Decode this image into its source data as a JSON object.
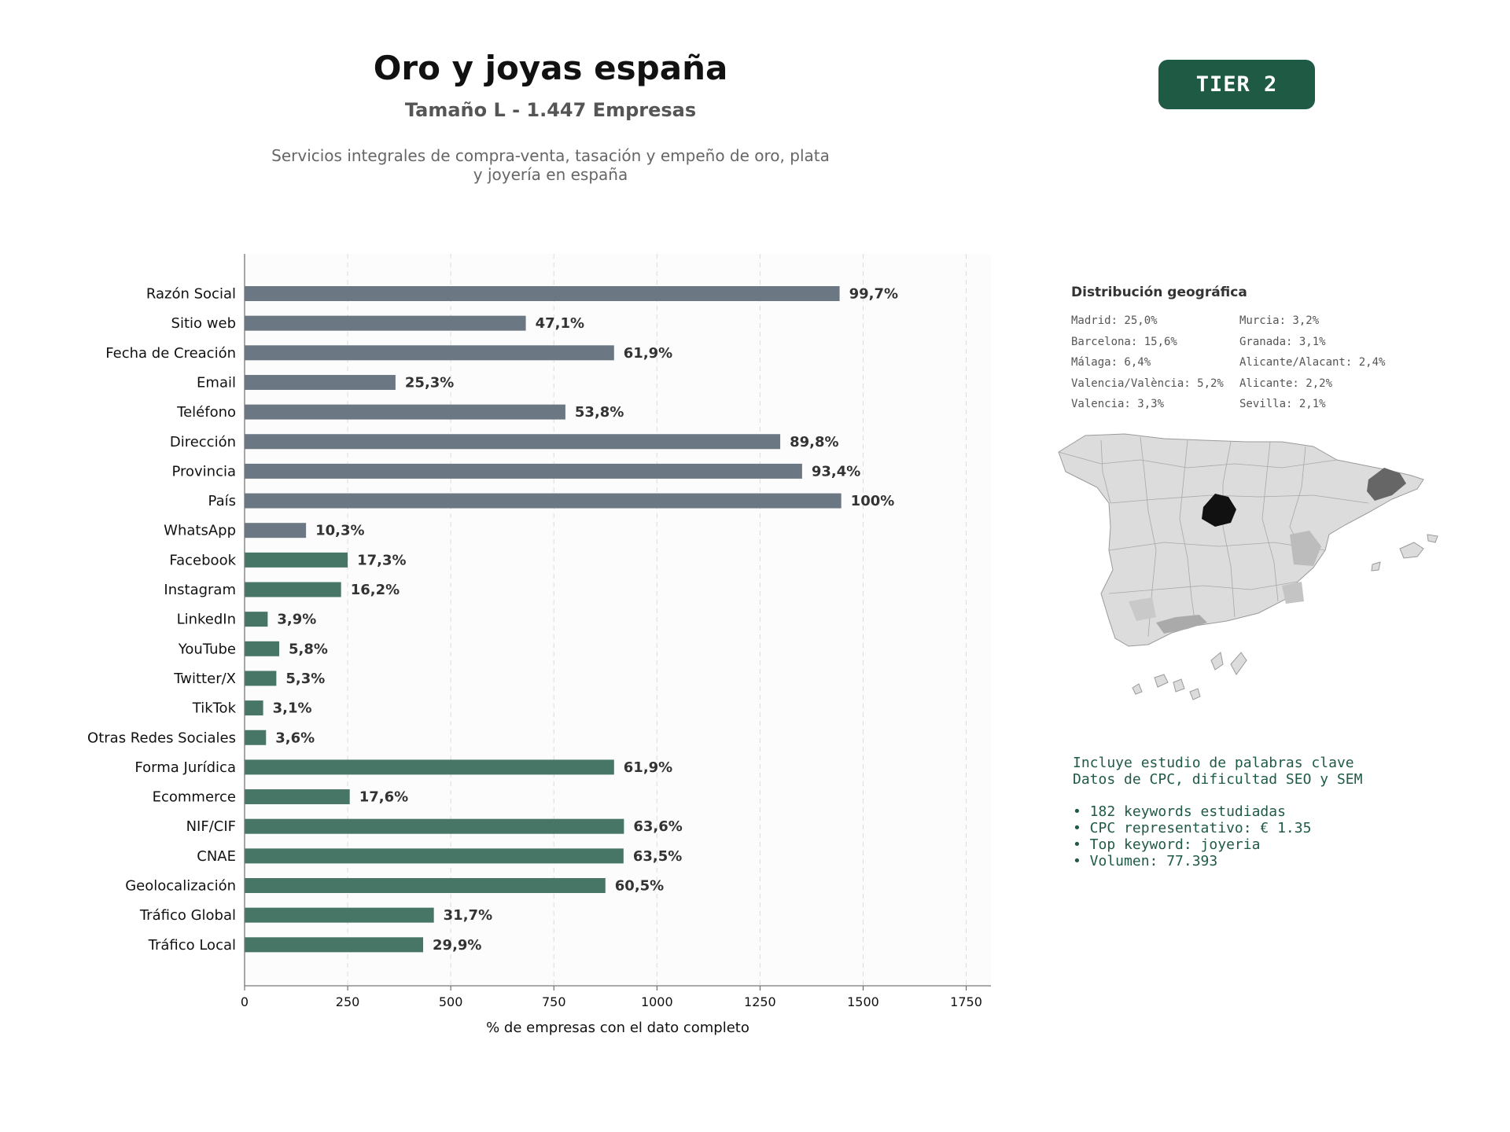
{
  "header": {
    "title": "Oro y joyas españa",
    "subtitle": "Tamaño L - 1.447 Empresas",
    "description_line1": "Servicios integrales de compra-venta, tasación y empeño de oro, plata",
    "description_line2": "y joyería en españa",
    "tier_label": "TIER 2"
  },
  "colors": {
    "gray_bar": "#6b7782",
    "green_bar": "#477666",
    "tier_bg": "#1f5a45",
    "info_text": "#1f5a45"
  },
  "chart_data": {
    "type": "bar",
    "orientation": "horizontal",
    "xlabel": "% de empresas con el dato completo",
    "xlim": [
      0,
      1810
    ],
    "xticks": [
      0,
      250,
      500,
      750,
      1000,
      1250,
      1500,
      1750
    ],
    "grid": true,
    "categories": [
      "Razón Social",
      "Sitio web",
      "Fecha de Creación",
      "Email",
      "Teléfono",
      "Dirección",
      "Provincia",
      "País",
      "WhatsApp",
      "Facebook",
      "Instagram",
      "LinkedIn",
      "YouTube",
      "Twitter/X",
      "TikTok",
      "Otras Redes Sociales",
      "Forma Jurídica",
      "Ecommerce",
      "NIF/CIF",
      "CNAE",
      "Geolocalización",
      "Tráfico Global",
      "Tráfico Local"
    ],
    "values": [
      1443,
      682,
      896,
      366,
      778,
      1299,
      1352,
      1447,
      149,
      250,
      234,
      56,
      84,
      77,
      45,
      52,
      896,
      255,
      920,
      919,
      875,
      459,
      433
    ],
    "labels": [
      "99,7%",
      "47,1%",
      "61,9%",
      "25,3%",
      "53,8%",
      "89,8%",
      "93,4%",
      "100%",
      "10,3%",
      "17,3%",
      "16,2%",
      "3,9%",
      "5,8%",
      "5,3%",
      "3,1%",
      "3,6%",
      "61,9%",
      "17,6%",
      "63,6%",
      "63,5%",
      "60,5%",
      "31,7%",
      "29,9%"
    ],
    "bar_colors": [
      "gray",
      "gray",
      "gray",
      "gray",
      "gray",
      "gray",
      "gray",
      "gray",
      "gray",
      "green",
      "green",
      "green",
      "green",
      "green",
      "green",
      "green",
      "green",
      "green",
      "green",
      "green",
      "green",
      "green",
      "green"
    ]
  },
  "geo": {
    "title": "Distribución geográfica",
    "items": [
      "Madrid: 25,0%",
      "Murcia: 3,2%",
      "Barcelona: 15,6%",
      "Granada: 3,1%",
      "Málaga: 6,4%",
      "Alicante/Alacant: 2,4%",
      "Valencia/València: 5,2%",
      "Alicante: 2,2%",
      "Valencia: 3,3%",
      "Sevilla: 2,1%"
    ]
  },
  "info": {
    "line1": "Incluye estudio de palabras clave",
    "line2": "Datos de CPC, dificultad SEO y SEM",
    "bullets": [
      "• 182 keywords estudiadas",
      "• CPC representativo: € 1.35",
      "• Top keyword: joyeria",
      "• Volumen: 77.393"
    ]
  }
}
